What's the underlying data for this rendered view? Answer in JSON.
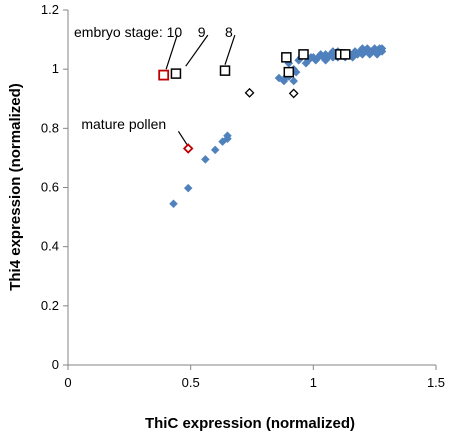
{
  "chart_data": {
    "type": "scatter",
    "xlabel": "ThiC expression (normalized)",
    "ylabel": "Thi4  expression (normalized)",
    "xlim": [
      0,
      1.5
    ],
    "ylim": [
      0,
      1.2
    ],
    "xticks": [
      "0",
      "0.5",
      "1",
      "1.5"
    ],
    "yticks": [
      "0",
      "0.2",
      "0.4",
      "0.6",
      "0.8",
      "1",
      "1.2"
    ],
    "grid": false,
    "legend": "none",
    "colors": {
      "diamond_fill": "#4f81bd",
      "highlight": "#c00000",
      "outline": "#000000"
    },
    "series": [
      {
        "marker": "filled-diamond",
        "points": [
          [
            0.43,
            0.545
          ],
          [
            0.49,
            0.598
          ],
          [
            0.56,
            0.695
          ],
          [
            0.6,
            0.727
          ],
          [
            0.63,
            0.755
          ],
          [
            0.65,
            0.765
          ],
          [
            0.65,
            0.775
          ],
          [
            0.86,
            0.97
          ],
          [
            0.88,
            0.96
          ],
          [
            0.89,
            0.975
          ],
          [
            0.9,
            0.975
          ],
          [
            0.91,
            0.985
          ],
          [
            0.92,
            0.96
          ],
          [
            0.9,
            1.02
          ],
          [
            0.92,
            1.0
          ],
          [
            0.93,
            0.99
          ],
          [
            0.94,
            1.03
          ],
          [
            0.95,
            1.04
          ],
          [
            0.97,
            1.02
          ],
          [
            0.98,
            1.03
          ],
          [
            0.99,
            1.04
          ],
          [
            1.0,
            1.04
          ],
          [
            1.01,
            1.03
          ],
          [
            1.02,
            1.04
          ],
          [
            1.03,
            1.05
          ],
          [
            1.04,
            1.04
          ],
          [
            1.05,
            1.05
          ],
          [
            1.06,
            1.04
          ],
          [
            1.07,
            1.05
          ],
          [
            1.08,
            1.04
          ],
          [
            1.09,
            1.05
          ],
          [
            1.1,
            1.04
          ],
          [
            1.1,
            1.06
          ],
          [
            1.12,
            1.05
          ],
          [
            1.13,
            1.04
          ],
          [
            1.14,
            1.05
          ],
          [
            1.15,
            1.05
          ],
          [
            1.16,
            1.04
          ],
          [
            1.17,
            1.06
          ],
          [
            1.18,
            1.05
          ],
          [
            1.19,
            1.06
          ],
          [
            1.2,
            1.05
          ],
          [
            1.21,
            1.06
          ],
          [
            1.22,
            1.07
          ],
          [
            1.23,
            1.06
          ],
          [
            1.24,
            1.06
          ],
          [
            1.25,
            1.07
          ],
          [
            1.26,
            1.06
          ],
          [
            1.27,
            1.07
          ],
          [
            1.28,
            1.06
          ],
          [
            1.28,
            1.07
          ],
          [
            1.2,
            1.07
          ],
          [
            1.23,
            1.05
          ],
          [
            1.26,
            1.05
          ],
          [
            1.05,
            1.03
          ],
          [
            1.08,
            1.06
          ]
        ]
      },
      {
        "marker": "open-diamond",
        "points": [
          [
            0.74,
            0.92
          ],
          [
            0.92,
            0.918
          ]
        ]
      },
      {
        "marker": "open-diamond-red",
        "points": [
          [
            0.49,
            0.732
          ]
        ]
      },
      {
        "marker": "open-square",
        "points": [
          [
            0.44,
            0.985
          ],
          [
            0.64,
            0.995
          ],
          [
            0.89,
            1.04
          ],
          [
            0.9,
            0.99
          ],
          [
            0.96,
            1.05
          ],
          [
            1.11,
            1.05
          ],
          [
            1.13,
            1.05
          ]
        ]
      },
      {
        "marker": "open-square-red",
        "points": [
          [
            0.39,
            0.98
          ]
        ]
      }
    ],
    "annotations": [
      {
        "text": "embryo stage: 10    9     8",
        "anchor": [
          0.0,
          1.125
        ]
      },
      {
        "text": "mature pollen",
        "anchor": [
          0.03,
          0.815
        ]
      }
    ],
    "callout_lines": [
      {
        "from": [
          0.445,
          1.115
        ],
        "to": [
          0.4,
          1.0
        ]
      },
      {
        "from": [
          0.57,
          1.115
        ],
        "to": [
          0.48,
          1.01
        ]
      },
      {
        "from": [
          0.68,
          1.115
        ],
        "to": [
          0.64,
          1.015
        ]
      },
      {
        "from": [
          0.45,
          0.79
        ],
        "to": [
          0.485,
          0.745
        ]
      }
    ]
  }
}
